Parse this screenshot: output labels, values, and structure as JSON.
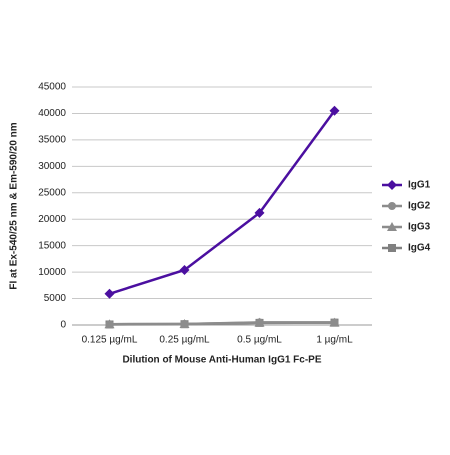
{
  "chart_data": {
    "type": "line",
    "x_label": "Dilution of Mouse Anti-Human IgG1 Fc-PE",
    "y_label": "FI at Ex-540/25 nm & Em-590/20 nm",
    "categories": [
      "0.125 µg/mL",
      "0.25 µg/mL",
      "0.5 µg/mL",
      "1 µg/mL"
    ],
    "series": [
      {
        "name": "IgG1",
        "color": "#4b0fa0",
        "marker": "diamond",
        "values": [
          5900,
          10400,
          21200,
          40500
        ]
      },
      {
        "name": "IgG2",
        "color": "#8c8c8c",
        "marker": "circle",
        "values": [
          150,
          200,
          500,
          500
        ]
      },
      {
        "name": "IgG3",
        "color": "#8c8c8c",
        "marker": "triangle",
        "values": [
          150,
          200,
          450,
          450
        ]
      },
      {
        "name": "IgG4",
        "color": "#808080",
        "marker": "square",
        "values": [
          100,
          150,
          400,
          450
        ]
      }
    ],
    "ylim": [
      0,
      45000
    ],
    "yticks": [
      0,
      5000,
      10000,
      15000,
      20000,
      25000,
      30000,
      35000,
      40000,
      45000
    ],
    "grid": true,
    "legend": "right"
  }
}
